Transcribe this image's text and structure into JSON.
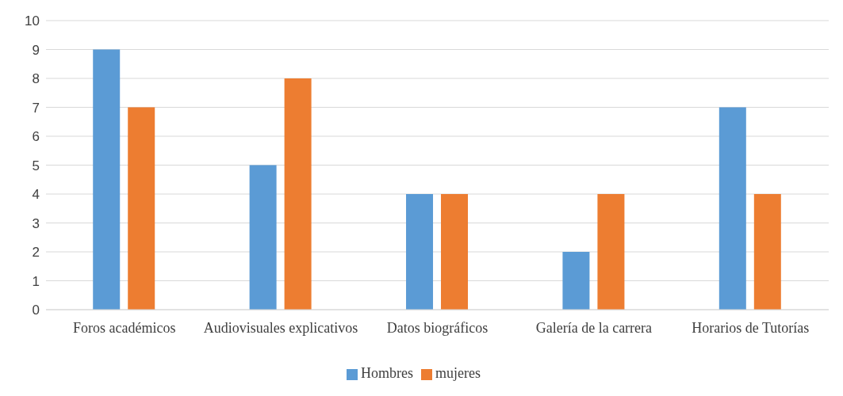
{
  "chart_data": {
    "type": "bar",
    "categories": [
      "Foros académicos",
      "Audiovisuales explicativos",
      "Datos biográficos",
      "Galería de la carrera",
      "Horarios de Tutorías"
    ],
    "series": [
      {
        "name": "Hombres",
        "color": "#5b9bd5",
        "values": [
          9,
          5,
          4,
          2,
          7
        ]
      },
      {
        "name": "mujeres",
        "color": "#ed7d31",
        "values": [
          7,
          8,
          4,
          4,
          4
        ]
      }
    ],
    "ylim": [
      0,
      10
    ],
    "yticks": [
      0,
      1,
      2,
      3,
      4,
      5,
      6,
      7,
      8,
      9,
      10
    ],
    "grid": "y",
    "legend": "bottom"
  }
}
